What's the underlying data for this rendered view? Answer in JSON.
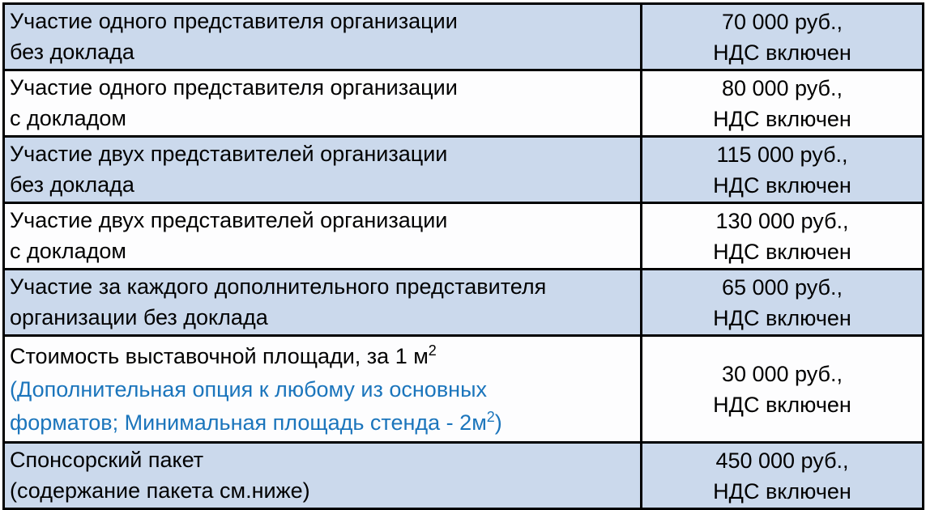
{
  "colors": {
    "row_shaded_bg": "#CBD9EC",
    "row_plain_bg": "#FDFDFE",
    "border": "#000000",
    "text": "#000000",
    "note_text_blue": "#1B75BC"
  },
  "table": {
    "rows": [
      {
        "label_line1": "Участие одного представителя организации",
        "label_line2": "без доклада",
        "price": "70 000 руб.,",
        "vat": "НДС включен"
      },
      {
        "label_line1": "Участие одного представителя организации",
        "label_line2": "с докладом",
        "price": "80 000 руб.,",
        "vat": "НДС включен"
      },
      {
        "label_line1": "Участие двух представителей организации",
        "label_line2": "без доклада",
        "price": "115 000 руб.,",
        "vat": "НДС включен"
      },
      {
        "label_line1": "Участие двух представителей организации",
        "label_line2": "с докладом",
        "price": "130 000 руб.,",
        "vat": "НДС включен"
      },
      {
        "label_line1": "Участие за каждого дополнительного представителя",
        "label_line2": "организации без доклада",
        "price": "65 000 руб.,",
        "vat": "НДС включен"
      },
      {
        "label_line1": "Стоимость выставочной площади, за 1 м",
        "label_line1_sup": "2",
        "note_line1": "(Дополнительная опция к любому из основных",
        "note_line2": "форматов; Минимальная площадь стенда - 2м",
        "note_line2_sup": "2",
        "note_close": ")",
        "price": "30 000 руб.,",
        "vat": "НДС включен"
      },
      {
        "label_line1": "Спонсорский пакет",
        "label_line2": "(содержание пакета см.ниже)",
        "price": "450 000 руб.,",
        "vat": "НДС включен"
      }
    ]
  }
}
